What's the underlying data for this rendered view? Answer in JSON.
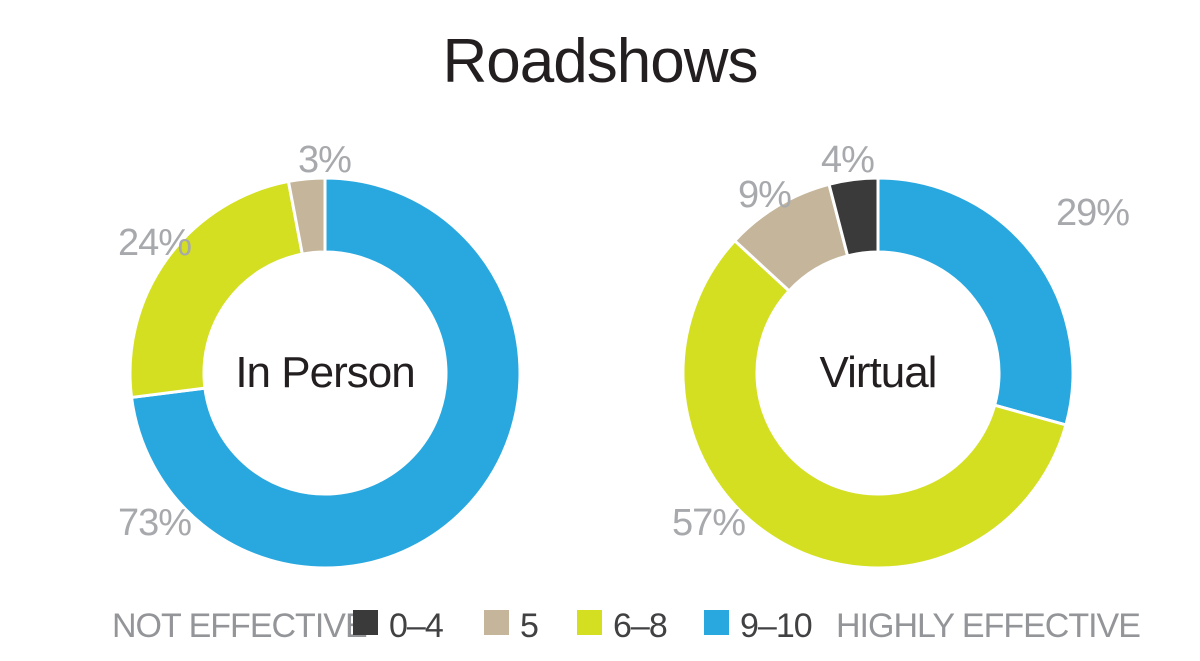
{
  "chart_data": [
    {
      "type": "pie",
      "title": "Roadshows",
      "center_label": "In Person",
      "slices": [
        {
          "category": "0–4",
          "value": 0,
          "label": ""
        },
        {
          "category": "5",
          "value": 3,
          "label": "3%"
        },
        {
          "category": "6–8",
          "value": 24,
          "label": "24%"
        },
        {
          "category": "9–10",
          "value": 73,
          "label": "73%"
        }
      ]
    },
    {
      "type": "pie",
      "center_label": "Virtual",
      "slices": [
        {
          "category": "0–4",
          "value": 4,
          "label": "4%"
        },
        {
          "category": "5",
          "value": 9,
          "label": "9%"
        },
        {
          "category": "6–8",
          "value": 57,
          "label": "57%"
        },
        {
          "category": "9–10",
          "value": 29,
          "label": "29%"
        }
      ]
    }
  ],
  "legend": {
    "start_label": "NOT EFFECTIVE",
    "end_label": "HIGHLY EFFECTIVE",
    "items": [
      {
        "category": "0–4",
        "color": "#3a3a3a"
      },
      {
        "category": "5",
        "color": "#c4b59b"
      },
      {
        "category": "6–8",
        "color": "#d4df22"
      },
      {
        "category": "9–10",
        "color": "#29a8e0"
      }
    ],
    "placement": "bottom"
  }
}
